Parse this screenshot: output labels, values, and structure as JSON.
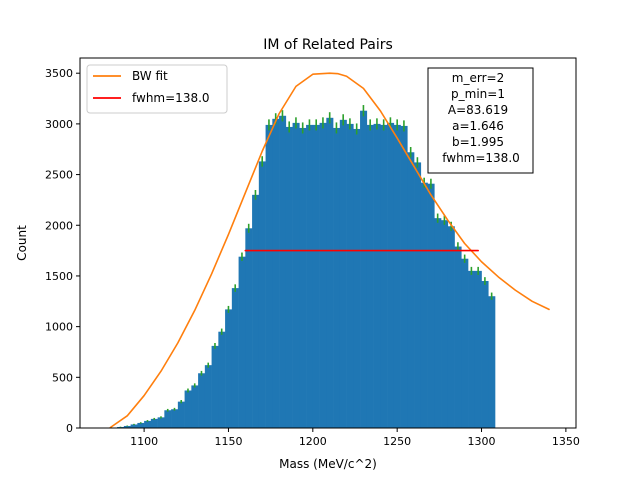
{
  "chart_data": {
    "type": "bar",
    "title": "IM of Related Pairs",
    "xlabel": "Mass (MeV/c^2)",
    "ylabel": "Count",
    "xlim": [
      1062,
      1356
    ],
    "ylim": [
      0,
      3650
    ],
    "xticks": [
      1100,
      1150,
      1200,
      1250,
      1300,
      1350
    ],
    "yticks": [
      0,
      500,
      1000,
      1500,
      2000,
      2500,
      3000,
      3500
    ],
    "bin_start": 1080,
    "bin_width": 4,
    "values": [
      3,
      10,
      20,
      35,
      50,
      70,
      90,
      105,
      175,
      185,
      260,
      370,
      420,
      540,
      620,
      810,
      950,
      1170,
      1380,
      1690,
      1970,
      2300,
      2630,
      2990,
      3050,
      3080,
      2970,
      3010,
      2960,
      2990,
      2990,
      3010,
      3060,
      2960,
      3040,
      3000,
      2950,
      3130,
      2990,
      3000,
      2990,
      3010,
      2990,
      2980,
      2720,
      2620,
      2420,
      2410,
      2070,
      2050,
      1990,
      1790,
      1670,
      1550,
      1550,
      1450,
      1300
    ],
    "hist_color": "#1f77b4",
    "errorbar_color": "#2ca02c",
    "series": [
      {
        "name": "BW fit",
        "color": "#ff7f0e",
        "x": [
          1080,
          1090,
          1100,
          1110,
          1120,
          1130,
          1140,
          1150,
          1160,
          1170,
          1180,
          1190,
          1200,
          1210,
          1215,
          1220,
          1230,
          1240,
          1250,
          1260,
          1270,
          1280,
          1290,
          1300,
          1310,
          1320,
          1330,
          1340
        ],
        "y": [
          5,
          120,
          320,
          560,
          840,
          1160,
          1520,
          1910,
          2320,
          2730,
          3100,
          3370,
          3490,
          3500,
          3495,
          3470,
          3350,
          3130,
          2860,
          2580,
          2300,
          2050,
          1820,
          1640,
          1490,
          1360,
          1250,
          1170
        ]
      },
      {
        "name": "fwhm=138.0",
        "color": "#ff0000",
        "x": [
          1160,
          1298
        ],
        "y": [
          1750,
          1750
        ]
      }
    ],
    "legend_position": "top-left",
    "annotation": [
      "m_err=2",
      "p_min=1",
      "A=83.619",
      "a=1.646",
      "b=1.995",
      "fwhm=138.0"
    ],
    "annotation_position": "top-right"
  }
}
